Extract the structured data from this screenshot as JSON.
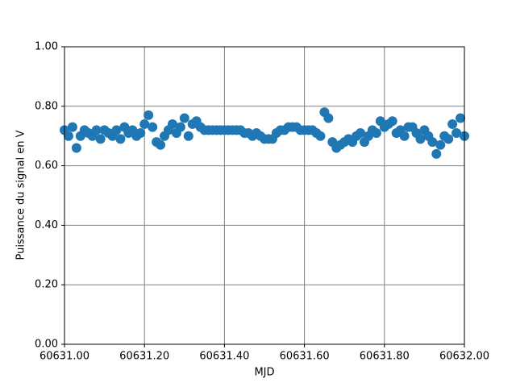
{
  "chart_data": {
    "type": "scatter",
    "xlabel": "MJD",
    "ylabel": "Puissance du signal en V",
    "color": "#1f77b4",
    "grid": true,
    "grid_color": "#808080",
    "xlim": [
      60631.0,
      60632.0
    ],
    "ylim": [
      0,
      1
    ],
    "xticks": [
      {
        "value": 60631.0,
        "label": "60631.00"
      },
      {
        "value": 60631.2,
        "label": "60631.20"
      },
      {
        "value": 60631.4,
        "label": "60631.40"
      },
      {
        "value": 60631.6,
        "label": "60631.60"
      },
      {
        "value": 60631.8,
        "label": "60631.80"
      },
      {
        "value": 60632.0,
        "label": "60632.00"
      }
    ],
    "yticks": [
      {
        "value": 0,
        "label": "0.00"
      },
      {
        "value": 0.2,
        "label": "0.20"
      },
      {
        "value": 0.4,
        "label": "0.40"
      },
      {
        "value": 0.6,
        "label": "0.60"
      },
      {
        "value": 0.8,
        "label": "0.80"
      },
      {
        "value": 1,
        "label": "1.00"
      }
    ],
    "x": [
      60631.0,
      60631.01,
      60631.02,
      60631.03,
      60631.04,
      60631.05,
      60631.06,
      60631.07,
      60631.08,
      60631.09,
      60631.1,
      60631.11,
      60631.12,
      60631.13,
      60631.14,
      60631.15,
      60631.16,
      60631.17,
      60631.18,
      60631.19,
      60631.2,
      60631.21,
      60631.22,
      60631.23,
      60631.24,
      60631.25,
      60631.26,
      60631.27,
      60631.28,
      60631.29,
      60631.3,
      60631.31,
      60631.32,
      60631.33,
      60631.34,
      60631.35,
      60631.36,
      60631.37,
      60631.38,
      60631.39,
      60631.4,
      60631.41,
      60631.42,
      60631.43,
      60631.44,
      60631.45,
      60631.46,
      60631.47,
      60631.48,
      60631.49,
      60631.5,
      60631.51,
      60631.52,
      60631.53,
      60631.54,
      60631.55,
      60631.56,
      60631.57,
      60631.58,
      60631.59,
      60631.6,
      60631.61,
      60631.62,
      60631.63,
      60631.64,
      60631.65,
      60631.66,
      60631.67,
      60631.68,
      60631.69,
      60631.7,
      60631.71,
      60631.72,
      60631.73,
      60631.74,
      60631.75,
      60631.76,
      60631.77,
      60631.78,
      60631.79,
      60631.8,
      60631.81,
      60631.82,
      60631.83,
      60631.84,
      60631.85,
      60631.86,
      60631.87,
      60631.88,
      60631.89,
      60631.9,
      60631.91,
      60631.92,
      60631.93,
      60631.94,
      60631.95,
      60631.96,
      60631.97,
      60631.98,
      60631.99,
      60632.0
    ],
    "values": [
      0.72,
      0.7,
      0.73,
      0.66,
      0.7,
      0.72,
      0.71,
      0.7,
      0.72,
      0.69,
      0.72,
      0.71,
      0.7,
      0.72,
      0.69,
      0.73,
      0.71,
      0.72,
      0.7,
      0.71,
      0.74,
      0.77,
      0.73,
      0.68,
      0.67,
      0.7,
      0.72,
      0.74,
      0.71,
      0.73,
      0.76,
      0.7,
      0.74,
      0.75,
      0.73,
      0.72,
      0.72,
      0.72,
      0.72,
      0.72,
      0.72,
      0.72,
      0.72,
      0.72,
      0.72,
      0.71,
      0.71,
      0.7,
      0.71,
      0.7,
      0.69,
      0.69,
      0.69,
      0.71,
      0.72,
      0.72,
      0.73,
      0.73,
      0.73,
      0.72,
      0.72,
      0.72,
      0.72,
      0.71,
      0.7,
      0.78,
      0.76,
      0.68,
      0.66,
      0.67,
      0.68,
      0.69,
      0.68,
      0.7,
      0.71,
      0.68,
      0.7,
      0.72,
      0.71,
      0.75,
      0.73,
      0.74,
      0.75,
      0.71,
      0.72,
      0.7,
      0.73,
      0.73,
      0.71,
      0.69,
      0.72,
      0.7,
      0.68,
      0.64,
      0.67,
      0.7,
      0.69,
      0.74,
      0.71,
      0.76,
      0.7
    ]
  }
}
